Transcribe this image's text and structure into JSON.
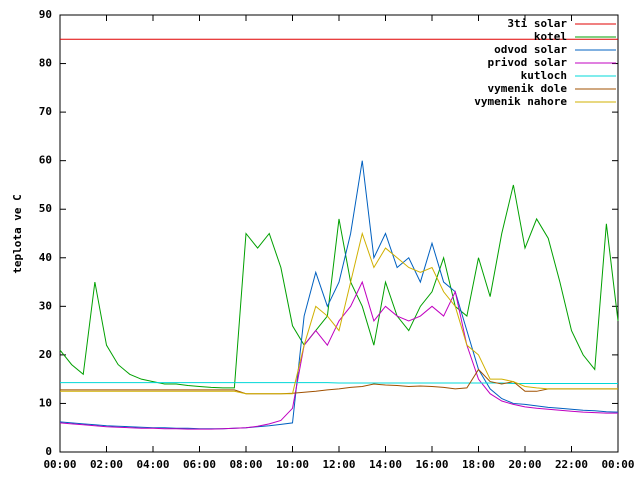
{
  "chart_data": {
    "type": "line",
    "ylabel": "teplota ve C",
    "x": [
      0,
      0.5,
      1,
      1.5,
      2,
      2.5,
      3,
      3.5,
      4,
      4.5,
      5,
      5.5,
      6,
      6.5,
      7,
      7.5,
      8,
      8.5,
      9,
      9.5,
      10,
      10.5,
      11,
      11.5,
      12,
      12.5,
      13,
      13.5,
      14,
      14.5,
      15,
      15.5,
      16,
      16.5,
      17,
      17.5,
      18,
      18.5,
      19,
      19.5,
      20,
      20.5,
      21,
      21.5,
      22,
      22.5,
      23,
      23.5,
      24
    ],
    "xlim": [
      0,
      24
    ],
    "xticks": [
      {
        "value": 0,
        "label": "00:00"
      },
      {
        "value": 2,
        "label": "02:00"
      },
      {
        "value": 4,
        "label": "04:00"
      },
      {
        "value": 6,
        "label": "06:00"
      },
      {
        "value": 8,
        "label": "08:00"
      },
      {
        "value": 10,
        "label": "10:00"
      },
      {
        "value": 12,
        "label": "12:00"
      },
      {
        "value": 14,
        "label": "14:00"
      },
      {
        "value": 16,
        "label": "16:00"
      },
      {
        "value": 18,
        "label": "18:00"
      },
      {
        "value": 20,
        "label": "20:00"
      },
      {
        "value": 22,
        "label": "22:00"
      },
      {
        "value": 24,
        "label": "00:00"
      }
    ],
    "ylim": [
      0,
      90
    ],
    "yticks": [
      0,
      10,
      20,
      30,
      40,
      50,
      60,
      70,
      80,
      90
    ],
    "legend": "top-right",
    "series": [
      {
        "name": "3ti solar",
        "color": "#e00000",
        "values": [
          85,
          85,
          85,
          85,
          85,
          85,
          85,
          85,
          85,
          85,
          85,
          85,
          85,
          85,
          85,
          85,
          85,
          85,
          85,
          85,
          85,
          85,
          85,
          85,
          85,
          85,
          85,
          85,
          85,
          85,
          85,
          85,
          85,
          85,
          85,
          85,
          85,
          85,
          85,
          85,
          85,
          85,
          85,
          85,
          85,
          85,
          85,
          85,
          85
        ]
      },
      {
        "name": "kotel",
        "color": "#00a000",
        "values": [
          21,
          18,
          16,
          35,
          22,
          18,
          16,
          15,
          14.5,
          14,
          14,
          13.7,
          13.5,
          13.3,
          13.2,
          13.2,
          45,
          42,
          45,
          38,
          26,
          22,
          25,
          28,
          48,
          35,
          30,
          22,
          35,
          28,
          25,
          30,
          33,
          40,
          30,
          28,
          40,
          32,
          45,
          55,
          42,
          48,
          44,
          35,
          25,
          20,
          17,
          47,
          27
        ]
      },
      {
        "name": "odvod solar",
        "color": "#0060c0",
        "values": [
          6.2,
          6,
          5.8,
          5.6,
          5.4,
          5.3,
          5.2,
          5.1,
          5,
          5,
          4.9,
          4.9,
          4.8,
          4.8,
          4.8,
          4.9,
          5,
          5.2,
          5.4,
          5.7,
          6,
          28,
          37,
          30,
          35,
          45,
          60,
          40,
          45,
          38,
          40,
          35,
          43,
          35,
          33,
          25,
          17,
          13,
          11,
          10,
          9.8,
          9.5,
          9.2,
          9,
          8.8,
          8.6,
          8.5,
          8.3,
          8.2
        ]
      },
      {
        "name": "privod solar",
        "color": "#c000c0",
        "values": [
          6,
          5.8,
          5.6,
          5.4,
          5.2,
          5.1,
          5,
          4.9,
          4.9,
          4.8,
          4.8,
          4.7,
          4.7,
          4.7,
          4.8,
          4.9,
          5,
          5.3,
          5.8,
          6.5,
          9,
          22,
          25,
          22,
          27,
          30,
          35,
          27,
          30,
          28,
          27,
          28,
          30,
          28,
          33,
          22,
          15,
          12,
          10.5,
          9.8,
          9.3,
          9,
          8.8,
          8.6,
          8.4,
          8.2,
          8.1,
          8,
          8
        ]
      },
      {
        "name": "kutloch",
        "color": "#00d8d8",
        "values": [
          14.3,
          14.3,
          14.3,
          14.3,
          14.3,
          14.3,
          14.3,
          14.3,
          14.3,
          14.3,
          14.3,
          14.3,
          14.3,
          14.3,
          14.3,
          14.3,
          14.3,
          14.3,
          14.3,
          14.3,
          14.3,
          14.3,
          14.3,
          14.3,
          14.2,
          14.2,
          14.2,
          14.2,
          14.2,
          14.2,
          14.2,
          14.2,
          14.2,
          14.2,
          14.2,
          14.2,
          14.2,
          14.2,
          14.2,
          14.1,
          14.1,
          14.1,
          14.1,
          14.1,
          14.1,
          14.1,
          14.1,
          14.1,
          14.1
        ]
      },
      {
        "name": "vymenik dole",
        "color": "#a05000",
        "values": [
          12.8,
          12.8,
          12.8,
          12.8,
          12.8,
          12.8,
          12.8,
          12.8,
          12.8,
          12.8,
          12.8,
          12.8,
          12.8,
          12.8,
          12.8,
          12.8,
          12,
          12,
          12,
          12,
          12.1,
          12.3,
          12.5,
          12.8,
          13,
          13.3,
          13.5,
          14,
          13.8,
          13.7,
          13.5,
          13.6,
          13.5,
          13.3,
          13,
          13.2,
          17,
          14.5,
          14,
          14.5,
          12.5,
          12.5,
          13,
          13,
          13,
          13,
          13,
          13,
          13
        ]
      },
      {
        "name": "vymenik nahore",
        "color": "#d0b000",
        "values": [
          12.5,
          12.5,
          12.5,
          12.5,
          12.5,
          12.5,
          12.5,
          12.5,
          12.5,
          12.5,
          12.5,
          12.5,
          12.5,
          12.5,
          12.5,
          12.5,
          12,
          12,
          12,
          12,
          12,
          22,
          30,
          28,
          25,
          35,
          45,
          38,
          42,
          40,
          38,
          37,
          38,
          33,
          30,
          22,
          20,
          15,
          15,
          14.5,
          13.5,
          13.2,
          13,
          13,
          13,
          13,
          13,
          13,
          13
        ]
      }
    ]
  }
}
